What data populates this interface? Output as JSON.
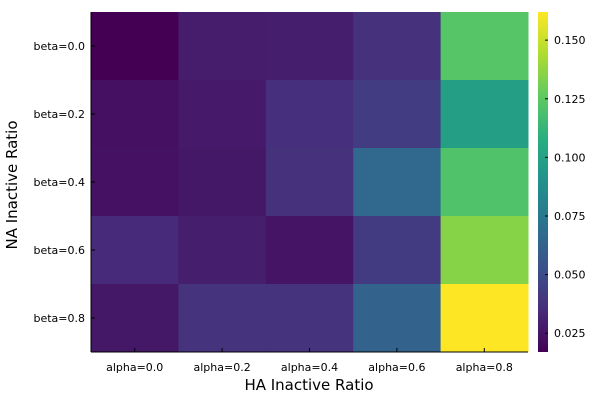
{
  "chart_data": {
    "type": "heatmap",
    "xlabel": "HA Inactive Ratio",
    "ylabel": "NA Inactive Ratio",
    "x_categories": [
      "alpha=0.0",
      "alpha=0.2",
      "alpha=0.4",
      "alpha=0.6",
      "alpha=0.8"
    ],
    "y_categories": [
      "beta=0.0",
      "beta=0.2",
      "beta=0.4",
      "beta=0.6",
      "beta=0.8"
    ],
    "values": [
      [
        0.017,
        0.028,
        0.029,
        0.037,
        0.123
      ],
      [
        0.023,
        0.027,
        0.036,
        0.043,
        0.098
      ],
      [
        0.024,
        0.026,
        0.037,
        0.066,
        0.121
      ],
      [
        0.034,
        0.029,
        0.025,
        0.042,
        0.135
      ],
      [
        0.026,
        0.038,
        0.038,
        0.063,
        0.162
      ]
    ],
    "colorbar": {
      "colormap": "viridis",
      "ticks": [
        "0.025",
        "0.050",
        "0.075",
        "0.100",
        "0.125",
        "0.150"
      ],
      "tick_values": [
        0.025,
        0.05,
        0.075,
        0.1,
        0.125,
        0.15
      ],
      "range": [
        0.017,
        0.162
      ]
    },
    "grid": false,
    "legend": "colorbar-right"
  }
}
